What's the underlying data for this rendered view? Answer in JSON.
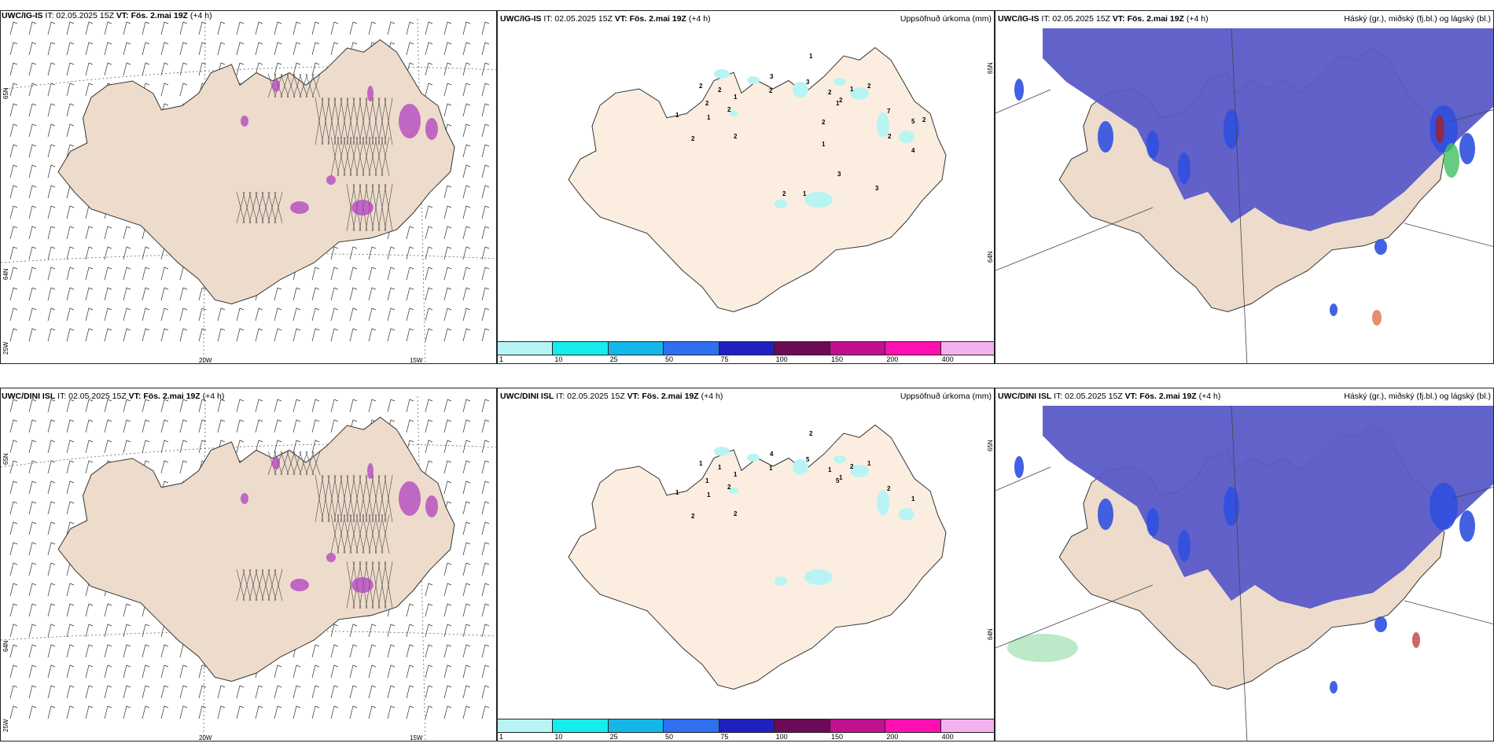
{
  "rows": [
    {
      "model_short": "UWC/IG-IS",
      "panels": [
        {
          "kind": "wind",
          "model": "UWC/IG-IS",
          "it": "IT: 02.05.2025 15Z",
          "vt_label": "VT:",
          "vt": "Fös. 2.mai 19Z",
          "lead": "(+4 h)",
          "right": ""
        },
        {
          "kind": "precip",
          "model": "UWC/IG-IS",
          "it": "IT: 02.05.2025 15Z",
          "vt_label": "VT:",
          "vt": "Fös. 2.mai 19Z",
          "lead": "(+4 h)",
          "right": "Uppsöfnuð úrkoma (mm)"
        },
        {
          "kind": "cloud",
          "model": "UWC/IG-IS",
          "it": "IT: 02.05.2025 15Z",
          "vt_label": "VT:",
          "vt": "Fös. 2.mai 19Z",
          "lead": "(+4 h)",
          "right": "Háský (gr.), miðský (fj.bl.) og lágský (bl.)"
        }
      ],
      "precip_values": [
        "1",
        "2",
        "2",
        "2",
        "2",
        "1",
        "2",
        "1",
        "2",
        "3",
        "2",
        "3",
        "1",
        "2",
        "2",
        "1",
        "2",
        "1",
        "7",
        "5",
        "2",
        "4",
        "2",
        "2",
        "1",
        "3",
        "3",
        "1",
        "2"
      ]
    },
    {
      "model_short": "UWC/DINI ISL",
      "panels": [
        {
          "kind": "wind",
          "model": "UWC/DINI ISL",
          "it": "IT: 02.05.2025 15Z",
          "vt_label": "VT:",
          "vt": "Fös. 2.mai 19Z",
          "lead": "(+4 h)",
          "right": ""
        },
        {
          "kind": "precip",
          "model": "UWC/DINI ISL",
          "it": "IT: 02.05.2025 15Z",
          "vt_label": "VT:",
          "vt": "Fös. 2.mai 19Z",
          "lead": "(+4 h)",
          "right": "Uppsöfnuð úrkoma (mm)"
        },
        {
          "kind": "cloud",
          "model": "UWC/DINI ISL",
          "it": "IT: 02.05.2025 15Z",
          "vt_label": "VT:",
          "vt": "Fös. 2.mai 19Z",
          "lead": "(+4 h)",
          "right": "Háský (gr.), miðský (fj.bl.) og lágský (bl.)"
        }
      ],
      "precip_values": [
        "1",
        "2",
        "1",
        "1",
        "1",
        "1",
        "2",
        "1",
        "2",
        "4",
        "1",
        "5",
        "2",
        "1",
        "1",
        "5",
        "1",
        "2",
        "2",
        "1"
      ]
    }
  ],
  "axis_labels": {
    "lat_65": "65N",
    "lat_64": "64N",
    "lon_25": "25W",
    "lon_20": "20W",
    "lon_15": "15W"
  },
  "colorbar": {
    "colors": [
      "#b8f4f4",
      "#17ecec",
      "#14b8e8",
      "#2f6ff0",
      "#2020c0",
      "#6b0a55",
      "#c0108f",
      "#ff10b0",
      "#f5b0ee"
    ],
    "ticks": [
      "1",
      "10",
      "25",
      "50",
      "75",
      "100",
      "150",
      "200",
      "400"
    ]
  },
  "colors": {
    "land": "#eddccb",
    "land_precip": "#fbeee0",
    "cloud_high": "#5a5ac8",
    "cloud_mid": "#3050e0",
    "cloud_low": "#40c060",
    "precip_light": "#b8f4f4",
    "snow_purple": "#b040c0"
  }
}
